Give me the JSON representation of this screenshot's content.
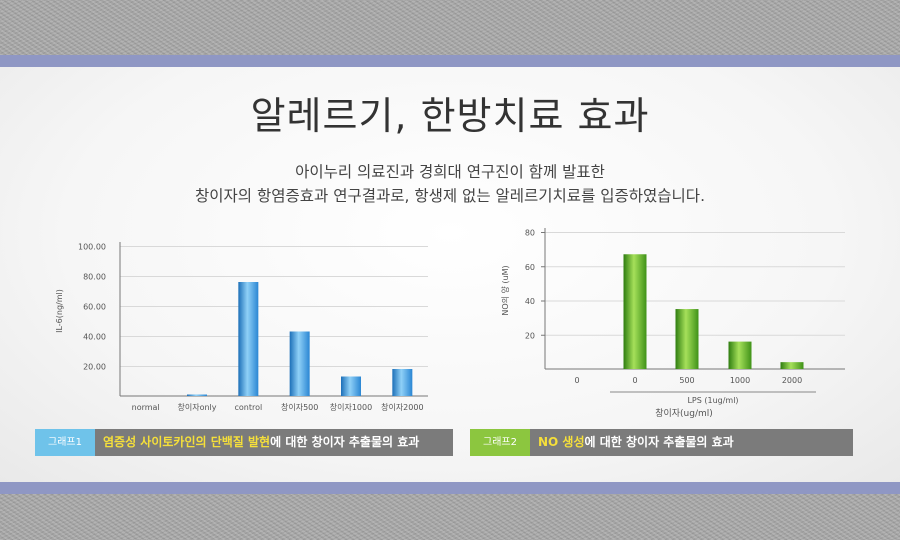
{
  "title": "알레르기, 한방치료 효과",
  "subtitle_line1": "아이누리 의료진과 경희대 연구진이 함께 발표한",
  "subtitle_line2": "창이자의 항염증효과 연구결과로, 항생제 없는 알레르기치료를 입증하였습니다.",
  "colors": {
    "band": "#8f97c4",
    "bar_blue": "#3d9de0",
    "bar_green": "#4fa61e",
    "tag1": "#6fc3ea",
    "tag2": "#8cc63f",
    "caption_bg": "#7b7b7b",
    "highlight": "#f5df3a"
  },
  "chart_data": [
    {
      "type": "bar",
      "ylabel": "IL-6(ng/ml)",
      "ylim": [
        0,
        100
      ],
      "yticks": [
        "100.00",
        "80.00",
        "60.00",
        "40.00",
        "20.00"
      ],
      "ytick_values": [
        100,
        80,
        60,
        40,
        20
      ],
      "categories": [
        "normal",
        "창이자only",
        "control",
        "창이자500",
        "창이자1000",
        "창이자2000"
      ],
      "values": [
        0,
        1,
        76,
        43,
        13,
        18
      ],
      "grid": true,
      "color": "#3d9de0",
      "caption": {
        "tag": "그래프1",
        "highlight": "염증성 사이토카인의 단백질 발현",
        "rest": "에 대한 창이자 추출물의 효과"
      }
    },
    {
      "type": "bar",
      "ylabel": "NO의 양 (uM)",
      "ylim": [
        0,
        80
      ],
      "yticks": [
        "80",
        "60",
        "40",
        "20"
      ],
      "ytick_values": [
        80,
        60,
        40,
        20
      ],
      "categories": [
        "0",
        "0",
        "500",
        "1000",
        "2000"
      ],
      "values": [
        0,
        67,
        35,
        16,
        4
      ],
      "grid": true,
      "color": "#4fa61e",
      "xlabel_group": "LPS (1ug/ml)",
      "xlabel": "창이자(ug/ml)",
      "caption": {
        "tag": "그래프2",
        "highlight": "NO 생성",
        "rest": "에 대한 창이자 추출물의 효과"
      }
    }
  ]
}
